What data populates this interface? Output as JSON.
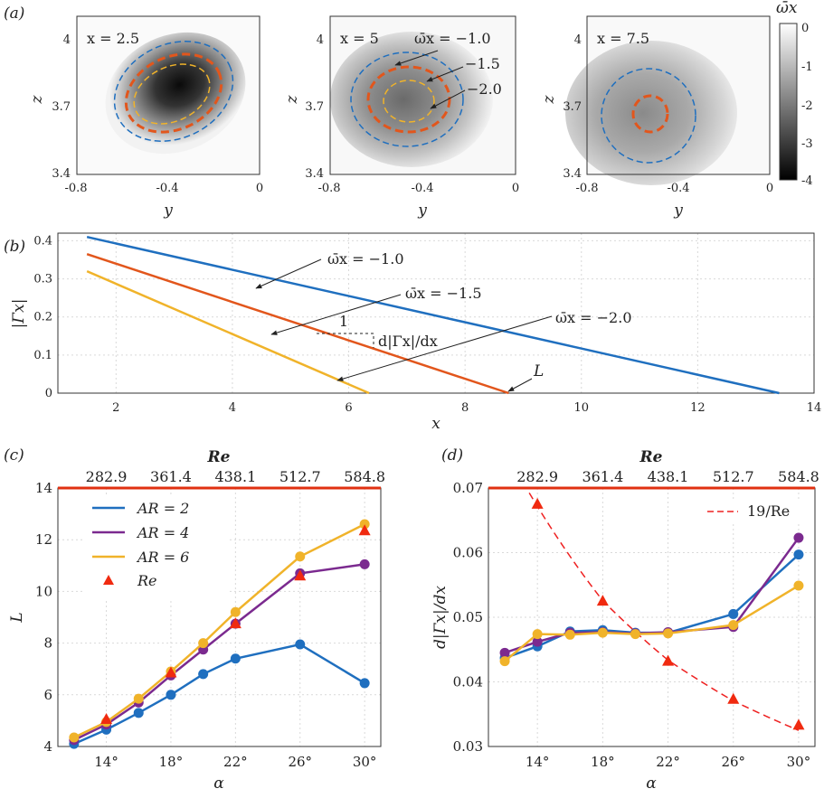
{
  "figure_labels": {
    "a": "(a)",
    "b": "(b)",
    "c": "(c)",
    "d": "(d)"
  },
  "colors": {
    "blue": "#1f6fbf",
    "orange": "#e2561c",
    "yellow": "#f0b32a",
    "purple": "#7b2a8f",
    "red_marker": "#f02a10",
    "red_line": "#ee2020",
    "top_axis": "#e03010"
  },
  "chart_data": [
    {
      "id": "a",
      "type": "heatmap",
      "colorbar": {
        "label": "ω̄x",
        "ticks": [
          "0",
          "-1",
          "-2",
          "-3",
          "-4"
        ],
        "range": [
          -4,
          0
        ]
      },
      "panels": [
        {
          "label": "x = 2.5",
          "core": {
            "y": -0.36,
            "z": 3.75
          },
          "min_value": -4
        },
        {
          "label": "x = 5",
          "core": {
            "y": -0.45,
            "z": 3.7
          },
          "min_value": -2.3
        },
        {
          "label": "x = 7.5",
          "core": {
            "y": -0.53,
            "z": 3.7
          },
          "min_value": -1.6
        }
      ],
      "contour_labels": [
        "ω̄x = −1.0",
        "−1.5",
        "−2.0"
      ],
      "xlabel": "y",
      "ylabel": "z",
      "xticks": [
        "-0.8",
        "-0.4",
        "0"
      ],
      "yticks": [
        "3.4",
        "3.7",
        "4"
      ],
      "xlim": [
        -0.8,
        0
      ],
      "ylim": [
        3.4,
        4.1
      ]
    },
    {
      "id": "b",
      "type": "line",
      "xlabel": "x",
      "ylabel": "|Γx|",
      "xlim": [
        1,
        14
      ],
      "ylim": [
        0,
        0.42
      ],
      "xticks": [
        "2",
        "4",
        "6",
        "8",
        "10",
        "12",
        "14"
      ],
      "yticks": [
        "0",
        "0.1",
        "0.2",
        "0.3",
        "0.4"
      ],
      "series": [
        {
          "name": "ω̄x = −1.0",
          "x": [
            1.5,
            13.4
          ],
          "y": [
            0.41,
            0.0
          ]
        },
        {
          "name": "ω̄x = −1.5",
          "x": [
            1.5,
            8.75
          ],
          "y": [
            0.365,
            0.0
          ]
        },
        {
          "name": "ω̄x = −2.0",
          "x": [
            1.5,
            6.35
          ],
          "y": [
            0.32,
            0.0
          ]
        }
      ],
      "annotations": {
        "slope_run": "1",
        "slope_label": "d|Γx|/dx",
        "L_label": "L"
      }
    },
    {
      "id": "c",
      "type": "line",
      "xlabel": "α",
      "ylabel": "L",
      "x": [
        12,
        14,
        16,
        18,
        20,
        22,
        26,
        30
      ],
      "xticks": [
        "14°",
        "18°",
        "22°",
        "26°",
        "30°"
      ],
      "yticks": [
        "4",
        "6",
        "8",
        "10",
        "12",
        "14"
      ],
      "xlim": [
        11,
        31
      ],
      "ylim": [
        4,
        14
      ],
      "top_axis": {
        "label": "Re",
        "ticks": [
          "282.9",
          "361.4",
          "438.1",
          "512.7",
          "584.8"
        ]
      },
      "series": [
        {
          "name": "AR = 2",
          "values": [
            4.1,
            4.65,
            5.3,
            6.0,
            6.8,
            7.4,
            7.95,
            6.45
          ]
        },
        {
          "name": "AR = 4",
          "values": [
            4.25,
            4.85,
            5.7,
            6.75,
            7.75,
            8.75,
            10.7,
            11.05
          ]
        },
        {
          "name": "AR = 6",
          "values": [
            4.35,
            4.95,
            5.85,
            6.9,
            8.0,
            9.2,
            11.35,
            12.6
          ]
        }
      ],
      "markers": {
        "name": "Re",
        "x": [
          14,
          18,
          22,
          26,
          30
        ],
        "values": [
          5.05,
          6.85,
          8.75,
          10.6,
          12.35
        ]
      }
    },
    {
      "id": "d",
      "type": "line",
      "xlabel": "α",
      "ylabel": "d|Γx|/dx",
      "x": [
        12,
        14,
        16,
        18,
        20,
        22,
        26,
        30
      ],
      "xticks": [
        "14°",
        "18°",
        "22°",
        "26°",
        "30°"
      ],
      "yticks": [
        "0.03",
        "0.04",
        "0.05",
        "0.06",
        "0.07"
      ],
      "xlim": [
        11,
        31
      ],
      "ylim": [
        0.03,
        0.07
      ],
      "top_axis": {
        "label": "Re",
        "ticks": [
          "282.9",
          "361.4",
          "438.1",
          "512.7",
          "584.8"
        ]
      },
      "series": [
        {
          "name": "AR = 2",
          "values": [
            0.0437,
            0.0455,
            0.0478,
            0.048,
            0.0476,
            0.0476,
            0.0505,
            0.0597
          ]
        },
        {
          "name": "AR = 4",
          "values": [
            0.0445,
            0.0462,
            0.0476,
            0.0477,
            0.0475,
            0.0477,
            0.0485,
            0.0623
          ]
        },
        {
          "name": "AR = 6",
          "values": [
            0.0432,
            0.0474,
            0.0473,
            0.0476,
            0.0474,
            0.0475,
            0.0488,
            0.0549
          ]
        }
      ],
      "markers": {
        "name": "Re",
        "x": [
          14,
          18,
          22,
          26,
          30
        ],
        "values": [
          0.0675,
          0.0525,
          0.0432,
          0.0373,
          0.0333
        ]
      },
      "fit": {
        "label": "19/Re",
        "coefficient": 19
      }
    }
  ]
}
